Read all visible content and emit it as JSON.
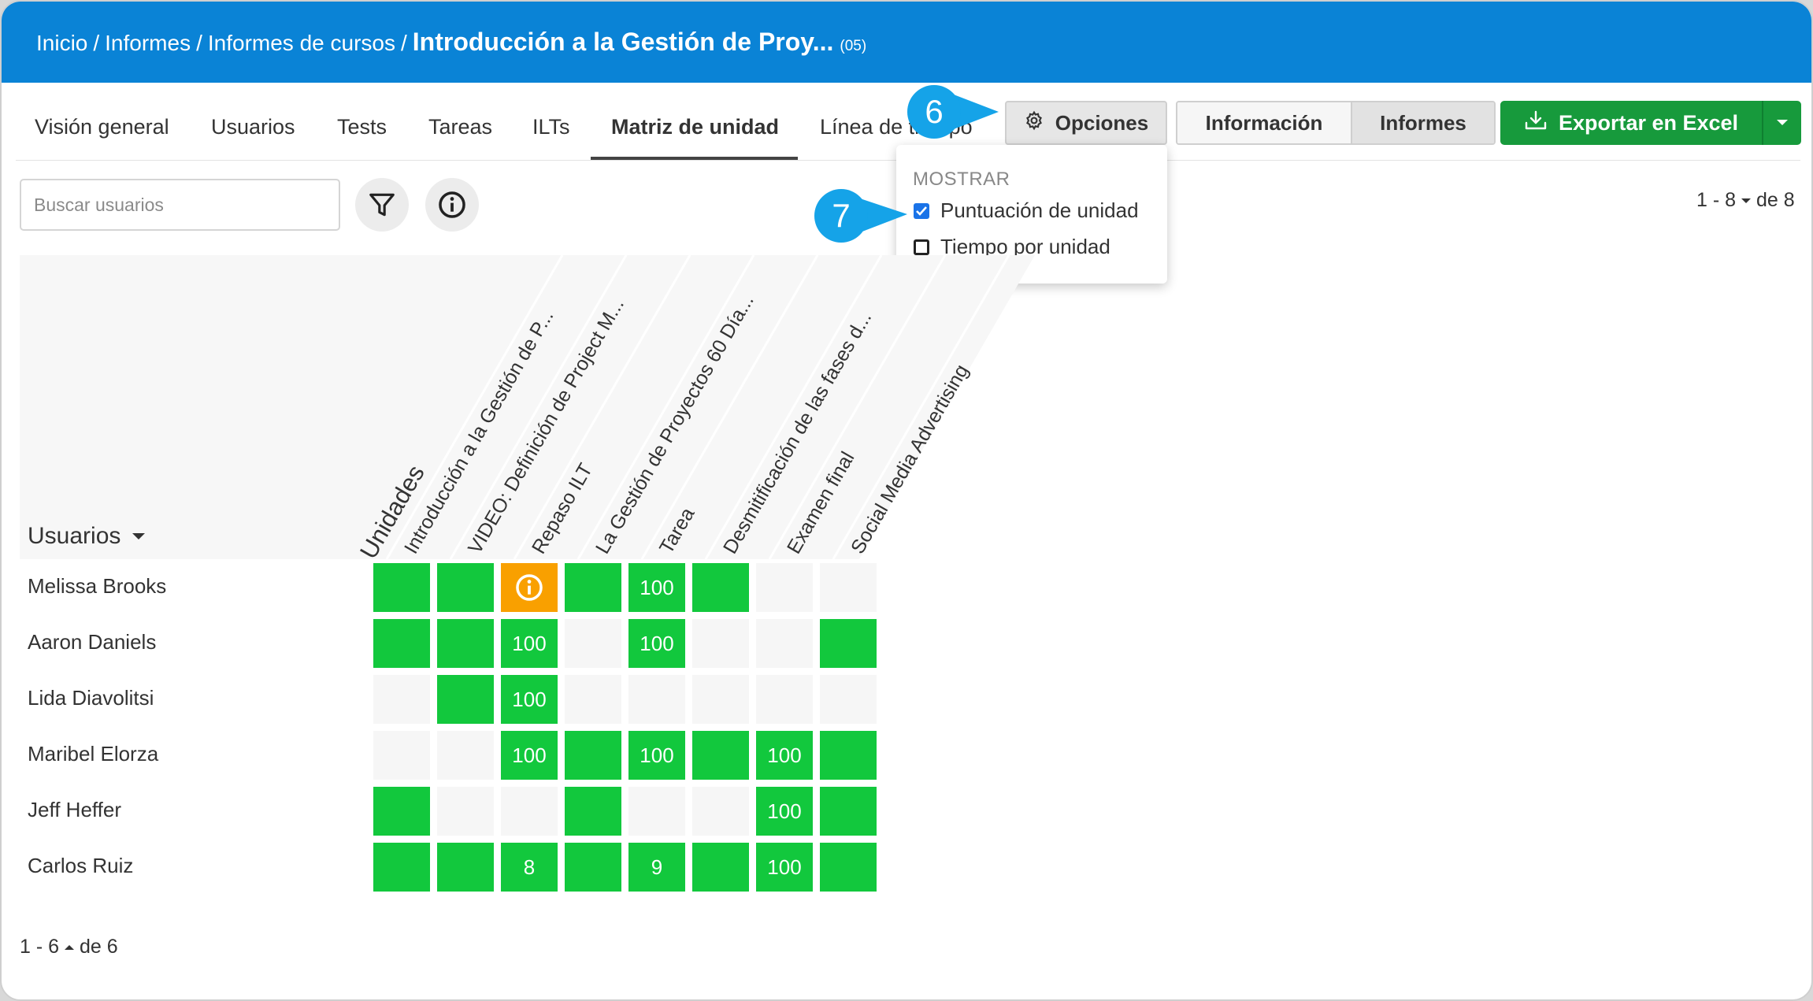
{
  "breadcrumb": {
    "items": [
      "Inicio",
      "Informes",
      "Informes de cursos"
    ],
    "current": "Introducción a la Gestión de Proy...",
    "count": "(05)"
  },
  "tabs": [
    {
      "label": "Visión general"
    },
    {
      "label": "Usuarios"
    },
    {
      "label": "Tests"
    },
    {
      "label": "Tareas"
    },
    {
      "label": "ILTs"
    },
    {
      "label": "Matriz de unidad"
    },
    {
      "label": "Línea de tiempo"
    }
  ],
  "toolbar": {
    "options_label": "Opciones",
    "info_label": "Información",
    "reports_label": "Informes",
    "export_label": "Exportar en Excel"
  },
  "dropdown": {
    "header": "MOSTRAR",
    "options": [
      {
        "label": "Puntuación de unidad",
        "checked": true
      },
      {
        "label": "Tiempo por unidad",
        "checked": false
      }
    ]
  },
  "callouts": [
    "6",
    "7"
  ],
  "search": {
    "placeholder": "Buscar usuarios"
  },
  "pager_top": {
    "range": "1 - 8",
    "total": "de 8"
  },
  "pager_bottom": {
    "range": "1 - 6",
    "total": "de 6"
  },
  "matrix": {
    "users_label": "Usuarios",
    "units_label": "Unidades",
    "columns": [
      "Introducción a la Gestión de P...",
      "VIDEO: Definición de Project M...",
      "Repaso ILT",
      "La Gestión de Proyectos 60 Día...",
      "Tarea",
      "Desmitificación de las fases d...",
      "Examen final",
      "Social Media Advertising"
    ],
    "rows": [
      {
        "name": "Melissa Brooks",
        "cells": [
          {
            "s": "green",
            "v": ""
          },
          {
            "s": "green",
            "v": ""
          },
          {
            "s": "warn",
            "v": ""
          },
          {
            "s": "green",
            "v": ""
          },
          {
            "s": "green",
            "v": "100"
          },
          {
            "s": "green",
            "v": ""
          },
          {
            "s": "empty",
            "v": ""
          },
          {
            "s": "empty",
            "v": ""
          }
        ]
      },
      {
        "name": "Aaron Daniels",
        "cells": [
          {
            "s": "green",
            "v": ""
          },
          {
            "s": "green",
            "v": ""
          },
          {
            "s": "green",
            "v": "100"
          },
          {
            "s": "empty",
            "v": ""
          },
          {
            "s": "green",
            "v": "100"
          },
          {
            "s": "empty",
            "v": ""
          },
          {
            "s": "empty",
            "v": ""
          },
          {
            "s": "green",
            "v": ""
          }
        ]
      },
      {
        "name": "Lida Diavolitsi",
        "cells": [
          {
            "s": "empty",
            "v": ""
          },
          {
            "s": "green",
            "v": ""
          },
          {
            "s": "green",
            "v": "100"
          },
          {
            "s": "empty",
            "v": ""
          },
          {
            "s": "empty",
            "v": ""
          },
          {
            "s": "empty",
            "v": ""
          },
          {
            "s": "empty",
            "v": ""
          },
          {
            "s": "empty",
            "v": ""
          }
        ]
      },
      {
        "name": "Maribel Elorza",
        "cells": [
          {
            "s": "empty",
            "v": ""
          },
          {
            "s": "empty",
            "v": ""
          },
          {
            "s": "green",
            "v": "100"
          },
          {
            "s": "green",
            "v": ""
          },
          {
            "s": "green",
            "v": "100"
          },
          {
            "s": "green",
            "v": ""
          },
          {
            "s": "green",
            "v": "100"
          },
          {
            "s": "green",
            "v": ""
          }
        ]
      },
      {
        "name": "Jeff Heffer",
        "cells": [
          {
            "s": "green",
            "v": ""
          },
          {
            "s": "empty",
            "v": ""
          },
          {
            "s": "empty",
            "v": ""
          },
          {
            "s": "green",
            "v": ""
          },
          {
            "s": "empty",
            "v": ""
          },
          {
            "s": "empty",
            "v": ""
          },
          {
            "s": "green",
            "v": "100"
          },
          {
            "s": "green",
            "v": ""
          }
        ]
      },
      {
        "name": "Carlos Ruiz",
        "cells": [
          {
            "s": "green",
            "v": ""
          },
          {
            "s": "green",
            "v": ""
          },
          {
            "s": "green",
            "v": "8"
          },
          {
            "s": "green",
            "v": ""
          },
          {
            "s": "green",
            "v": "9"
          },
          {
            "s": "green",
            "v": ""
          },
          {
            "s": "green",
            "v": "100"
          },
          {
            "s": "green",
            "v": ""
          }
        ]
      }
    ]
  },
  "colors": {
    "header": "#0a83d6",
    "success": "#12c83d",
    "warning": "#f9a000",
    "export": "#179a3c",
    "callout": "#15a3e8"
  }
}
